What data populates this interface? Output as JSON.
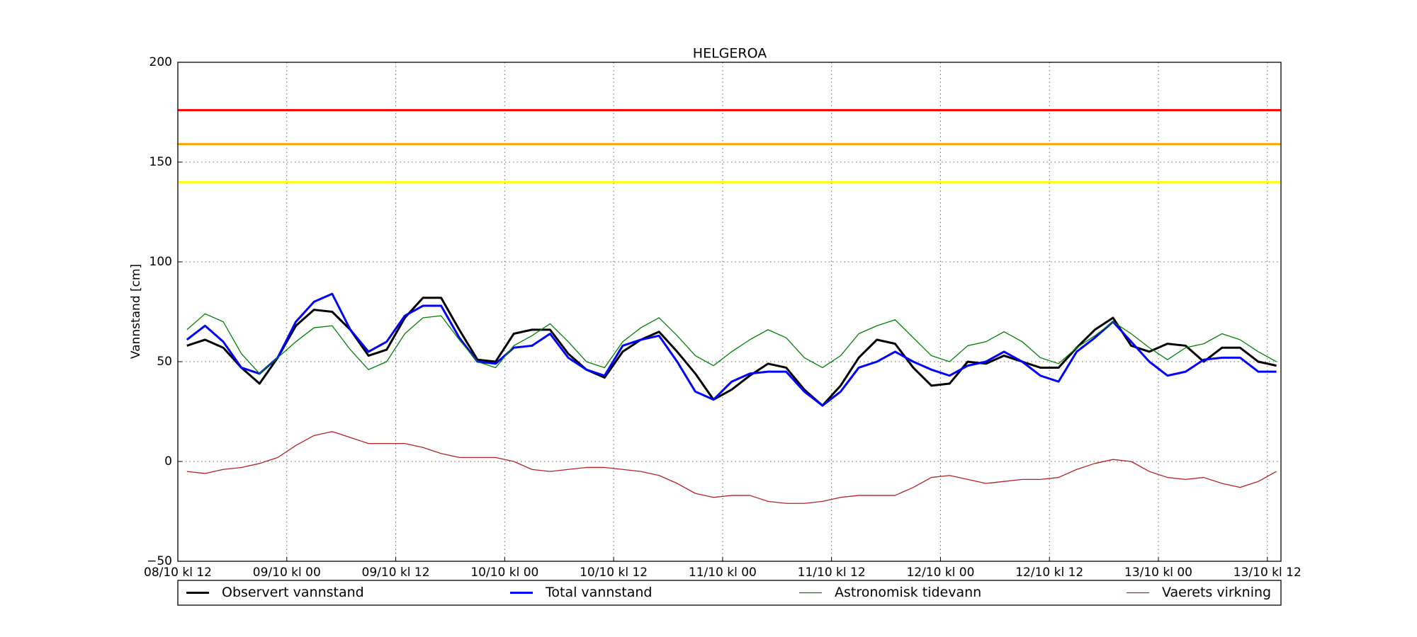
{
  "chart_data": {
    "type": "line",
    "title": "HELGEROA",
    "y_label": "Vannstand [cm]",
    "x": [
      1,
      3,
      5,
      7,
      9,
      11,
      13,
      15,
      17,
      19,
      21,
      23,
      25,
      27,
      29,
      31,
      33,
      35,
      37,
      39,
      41,
      43,
      45,
      47,
      49,
      51,
      53,
      55,
      57,
      59,
      61,
      63,
      65,
      67,
      69,
      71,
      73,
      75,
      77,
      79,
      81,
      83,
      85,
      87,
      89,
      91,
      93,
      95,
      97,
      99,
      101,
      103,
      105,
      107,
      109,
      111,
      113,
      115,
      117,
      119,
      121
    ],
    "series": [
      {
        "name": "Observert vannstand",
        "color": "#000000",
        "width": 3,
        "values": [
          58,
          61,
          57,
          47,
          39,
          52,
          68,
          76,
          75,
          66,
          53,
          56,
          72,
          82,
          82,
          66,
          51,
          50,
          64,
          66,
          66,
          54,
          46,
          42,
          55,
          61,
          65,
          55,
          44,
          31,
          36,
          43,
          49,
          47,
          36,
          28,
          38,
          52,
          61,
          59,
          47,
          38,
          39,
          50,
          49,
          53,
          50,
          47,
          47,
          57,
          66,
          72,
          58,
          55,
          59,
          58,
          50,
          57,
          57,
          50,
          48
        ]
      },
      {
        "name": "Total vannstand",
        "color": "#0000ff",
        "width": 3,
        "values": [
          61,
          68,
          60,
          47,
          44,
          52,
          70,
          80,
          84,
          66,
          55,
          60,
          73,
          78,
          78,
          62,
          50,
          49,
          57,
          58,
          64,
          52,
          46,
          43,
          58,
          61,
          63,
          50,
          35,
          31,
          40,
          44,
          45,
          45,
          35,
          28,
          35,
          47,
          50,
          55,
          50,
          46,
          43,
          48,
          50,
          55,
          50,
          43,
          40,
          55,
          62,
          70,
          60,
          50,
          43,
          45,
          51,
          52,
          52,
          45,
          45
        ]
      },
      {
        "name": "Astronomisk tidevann",
        "color": "#008000",
        "width": 1.3,
        "values": [
          66,
          74,
          70,
          54,
          44,
          52,
          60,
          67,
          68,
          56,
          46,
          50,
          64,
          72,
          73,
          61,
          50,
          47,
          58,
          63,
          69,
          60,
          50,
          47,
          60,
          67,
          72,
          63,
          53,
          48,
          55,
          61,
          66,
          62,
          52,
          47,
          53,
          64,
          68,
          71,
          62,
          53,
          50,
          58,
          60,
          65,
          60,
          52,
          49,
          57,
          63,
          70,
          64,
          57,
          51,
          57,
          59,
          64,
          61,
          55,
          50
        ]
      },
      {
        "name": "Vaerets virkning",
        "color": "#b22222",
        "width": 1.3,
        "values": [
          -5,
          -6,
          -4,
          -3,
          -1,
          2,
          8,
          13,
          15,
          12,
          9,
          9,
          9,
          7,
          4,
          2,
          2,
          2,
          0,
          -4,
          -5,
          -4,
          -3,
          -3,
          -4,
          -5,
          -7,
          -11,
          -16,
          -18,
          -17,
          -17,
          -20,
          -21,
          -21,
          -20,
          -18,
          -17,
          -17,
          -17,
          -13,
          -8,
          -7,
          -9,
          -11,
          -10,
          -9,
          -9,
          -8,
          -4,
          -1,
          1,
          0,
          -5,
          -8,
          -9,
          -8,
          -11,
          -13,
          -10,
          -5
        ]
      }
    ],
    "thresholds": [
      {
        "value": 176,
        "color": "#ff0000"
      },
      {
        "value": 159,
        "color": "#ffa500"
      },
      {
        "value": 140,
        "color": "#ffff00"
      }
    ],
    "xlim": [
      0,
      121.5
    ],
    "xticks": [
      {
        "value": 0,
        "label": "08/10 kl 12"
      },
      {
        "value": 12,
        "label": "09/10 kl 00"
      },
      {
        "value": 24,
        "label": "09/10 kl 12"
      },
      {
        "value": 36,
        "label": "10/10 kl 00"
      },
      {
        "value": 48,
        "label": "10/10 kl 12"
      },
      {
        "value": 60,
        "label": "11/10 kl 00"
      },
      {
        "value": 72,
        "label": "11/10 kl 12"
      },
      {
        "value": 84,
        "label": "12/10 kl 00"
      },
      {
        "value": 96,
        "label": "12/10 kl 12"
      },
      {
        "value": 108,
        "label": "13/10 kl 00"
      },
      {
        "value": 120,
        "label": "13/10 kl 12"
      }
    ],
    "ylim": [
      -50,
      200
    ],
    "yticks": [
      {
        "value": -50,
        "label": "−50"
      },
      0,
      50,
      100,
      150,
      200
    ],
    "grid": true
  }
}
